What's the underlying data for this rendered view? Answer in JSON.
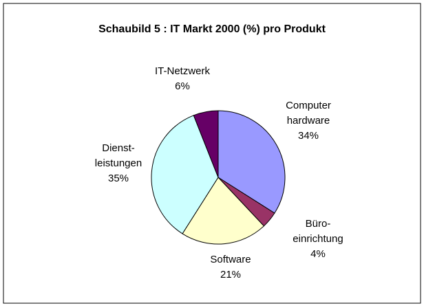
{
  "chart_data": {
    "type": "pie",
    "title": "Schaubild 5 : IT Markt  2000 (%) pro Produkt",
    "categories": [
      "Computer\nhardware",
      "Büro-\neinrichtung",
      "Software",
      "Dienst-\nleistungen",
      "IT-Netzwerk"
    ],
    "values": [
      34,
      4,
      21,
      35,
      6
    ],
    "value_labels": [
      "34%",
      "4%",
      "21%",
      "35%",
      "6%"
    ],
    "colors": [
      "#9999ff",
      "#993366",
      "#ffffcc",
      "#ccffff",
      "#660066"
    ]
  }
}
